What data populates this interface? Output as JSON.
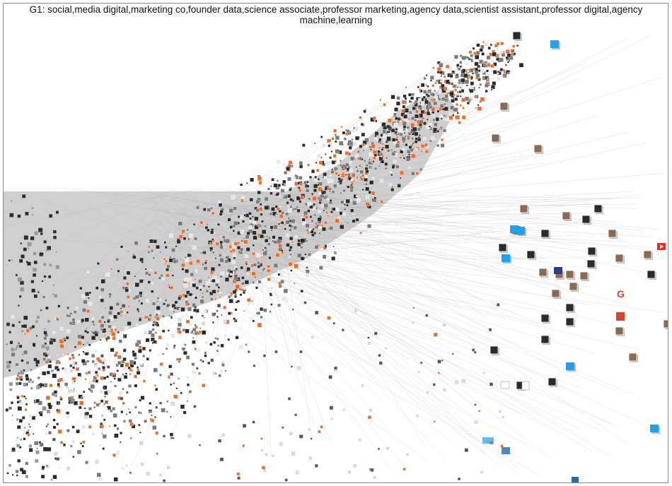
{
  "graph": {
    "group_label_line1": "G1: social,media digital,marketing co,founder data,science associate,professor marketing,agency data,scientist assistant,professor digital,agency",
    "group_label_line2": "machine,learning",
    "colors": {
      "background": "#ffffff",
      "edge": "#c8c8c8",
      "dense_edge": "#a8a8a8",
      "accent_orange": "#f26b21",
      "node_dark": "#2b2b2b",
      "node_light": "#e6e6e6",
      "twitter_blue": "#1da1f2",
      "youtube_red": "#e52d27",
      "google_red": "#d7432f"
    },
    "logo_nodes": [
      "twitter-icon",
      "youtube-icon",
      "google-icon",
      "letter-e-icon",
      "ft-icon",
      "cn-icon",
      "wp-icon"
    ]
  }
}
